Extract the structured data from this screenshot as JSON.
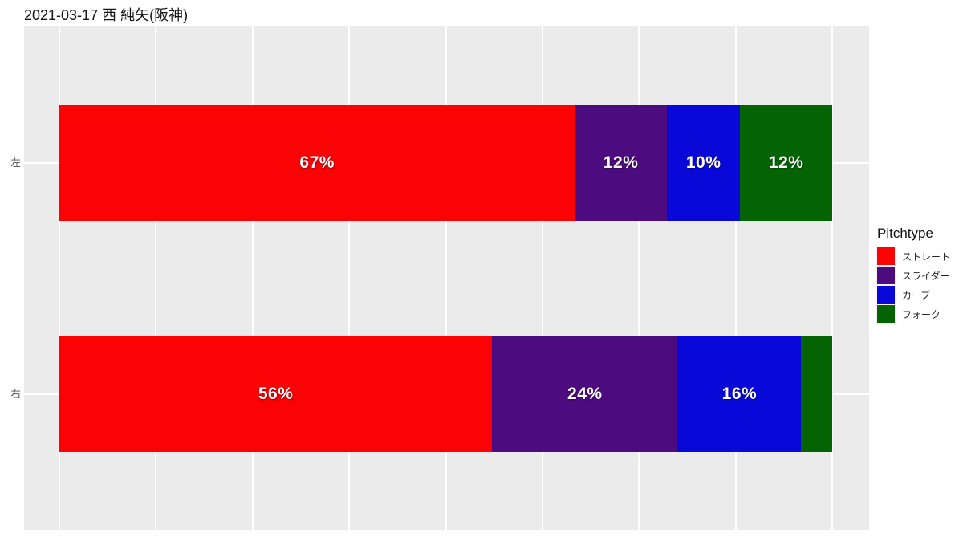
{
  "title": "2021-03-17 西 純矢(阪神)",
  "legend": {
    "title": "Pitchtype",
    "items": [
      {
        "label": "ストレート",
        "color": "#FB0205"
      },
      {
        "label": "スライダー",
        "color": "#4D0B80"
      },
      {
        "label": "カーブ",
        "color": "#0808D8"
      },
      {
        "label": "フォーク",
        "color": "#046404"
      }
    ]
  },
  "chart_data": {
    "type": "bar",
    "orientation": "horizontal",
    "stacked": true,
    "units": "percent",
    "title": "2021-03-17 西 純矢(阪神)",
    "categories": [
      "左",
      "右"
    ],
    "series": [
      {
        "name": "ストレート",
        "color": "#FB0205",
        "values": [
          66.7,
          56
        ],
        "labels": [
          "67%",
          "56%"
        ]
      },
      {
        "name": "スライダー",
        "color": "#4D0B80",
        "values": [
          11.9,
          24
        ],
        "labels": [
          "12%",
          "24%"
        ]
      },
      {
        "name": "カーブ",
        "color": "#0808D8",
        "values": [
          9.5,
          16
        ],
        "labels": [
          "10%",
          "16%"
        ]
      },
      {
        "name": "フォーク",
        "color": "#046404",
        "values": [
          11.9,
          4
        ],
        "labels": [
          "12%",
          ""
        ]
      }
    ],
    "xlim": [
      0,
      100
    ],
    "x_gridline_step_percent": 12.5,
    "x_axis_tick_labels": "none",
    "legend_position": "right",
    "panel_background": "#EBEBEB",
    "gridline_color": "#FFFFFF",
    "bar_label_color": "#FFFFFF"
  }
}
